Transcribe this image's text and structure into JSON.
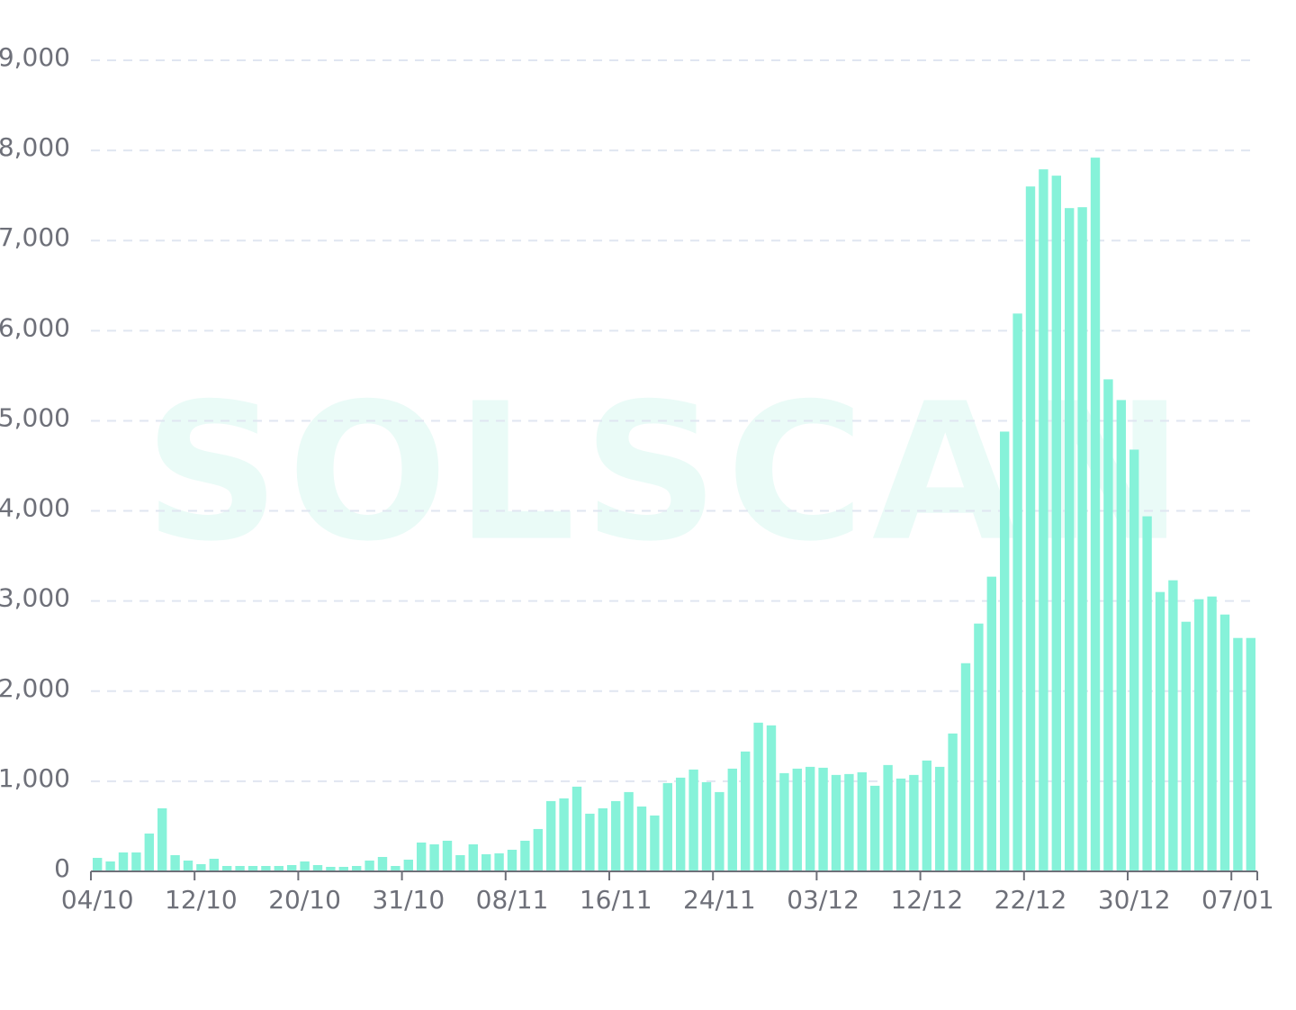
{
  "chart_data": {
    "type": "bar",
    "watermark": "SOLSCAN",
    "categories": [
      "04/10",
      null,
      null,
      null,
      null,
      null,
      null,
      null,
      "12/10",
      null,
      null,
      null,
      null,
      null,
      null,
      null,
      "20/10",
      null,
      null,
      null,
      null,
      null,
      null,
      null,
      "31/10",
      null,
      null,
      null,
      null,
      null,
      null,
      null,
      "08/11",
      null,
      null,
      null,
      null,
      null,
      null,
      null,
      "16/11",
      null,
      null,
      null,
      null,
      null,
      null,
      null,
      "24/11",
      null,
      null,
      null,
      null,
      null,
      null,
      null,
      "03/12",
      null,
      null,
      null,
      null,
      null,
      null,
      null,
      "12/12",
      null,
      null,
      null,
      null,
      null,
      null,
      null,
      "22/12",
      null,
      null,
      null,
      null,
      null,
      null,
      null,
      "30/12",
      null,
      null,
      null,
      null,
      null,
      null,
      null,
      "07/01",
      null
    ],
    "values": [
      150,
      110,
      210,
      210,
      420,
      700,
      180,
      120,
      80,
      140,
      60,
      60,
      60,
      60,
      60,
      70,
      110,
      70,
      50,
      50,
      60,
      120,
      160,
      60,
      130,
      320,
      300,
      340,
      180,
      300,
      190,
      200,
      240,
      340,
      470,
      780,
      810,
      940,
      640,
      700,
      780,
      880,
      720,
      620,
      980,
      1040,
      1130,
      990,
      880,
      1140,
      1330,
      1650,
      1620,
      1090,
      1140,
      1160,
      1150,
      1070,
      1080,
      1100,
      950,
      1180,
      1030,
      1070,
      1230,
      1160,
      1530,
      2310,
      2750,
      3270,
      4880,
      6190,
      7600,
      7790,
      7720,
      7360,
      7370,
      7920,
      5460,
      5230,
      4680,
      3940,
      3100,
      3230,
      2770,
      3020,
      3050,
      2850,
      2590,
      2590
    ],
    "color": "#86f2d9",
    "ylim": [
      0,
      9000
    ],
    "yticks": [
      0,
      {
        "value": 1000,
        "label": "1,000"
      },
      {
        "value": 2000,
        "label": "2,000"
      },
      {
        "value": 3000,
        "label": "3,000"
      },
      {
        "value": 4000,
        "label": "4,000"
      },
      {
        "value": 5000,
        "label": "5,000"
      },
      {
        "value": 6000,
        "label": "6,000"
      },
      {
        "value": 7000,
        "label": "7,000"
      },
      {
        "value": 8000,
        "label": "8,000"
      },
      {
        "value": 9000,
        "label": "9,000"
      }
    ],
    "grid": true
  }
}
